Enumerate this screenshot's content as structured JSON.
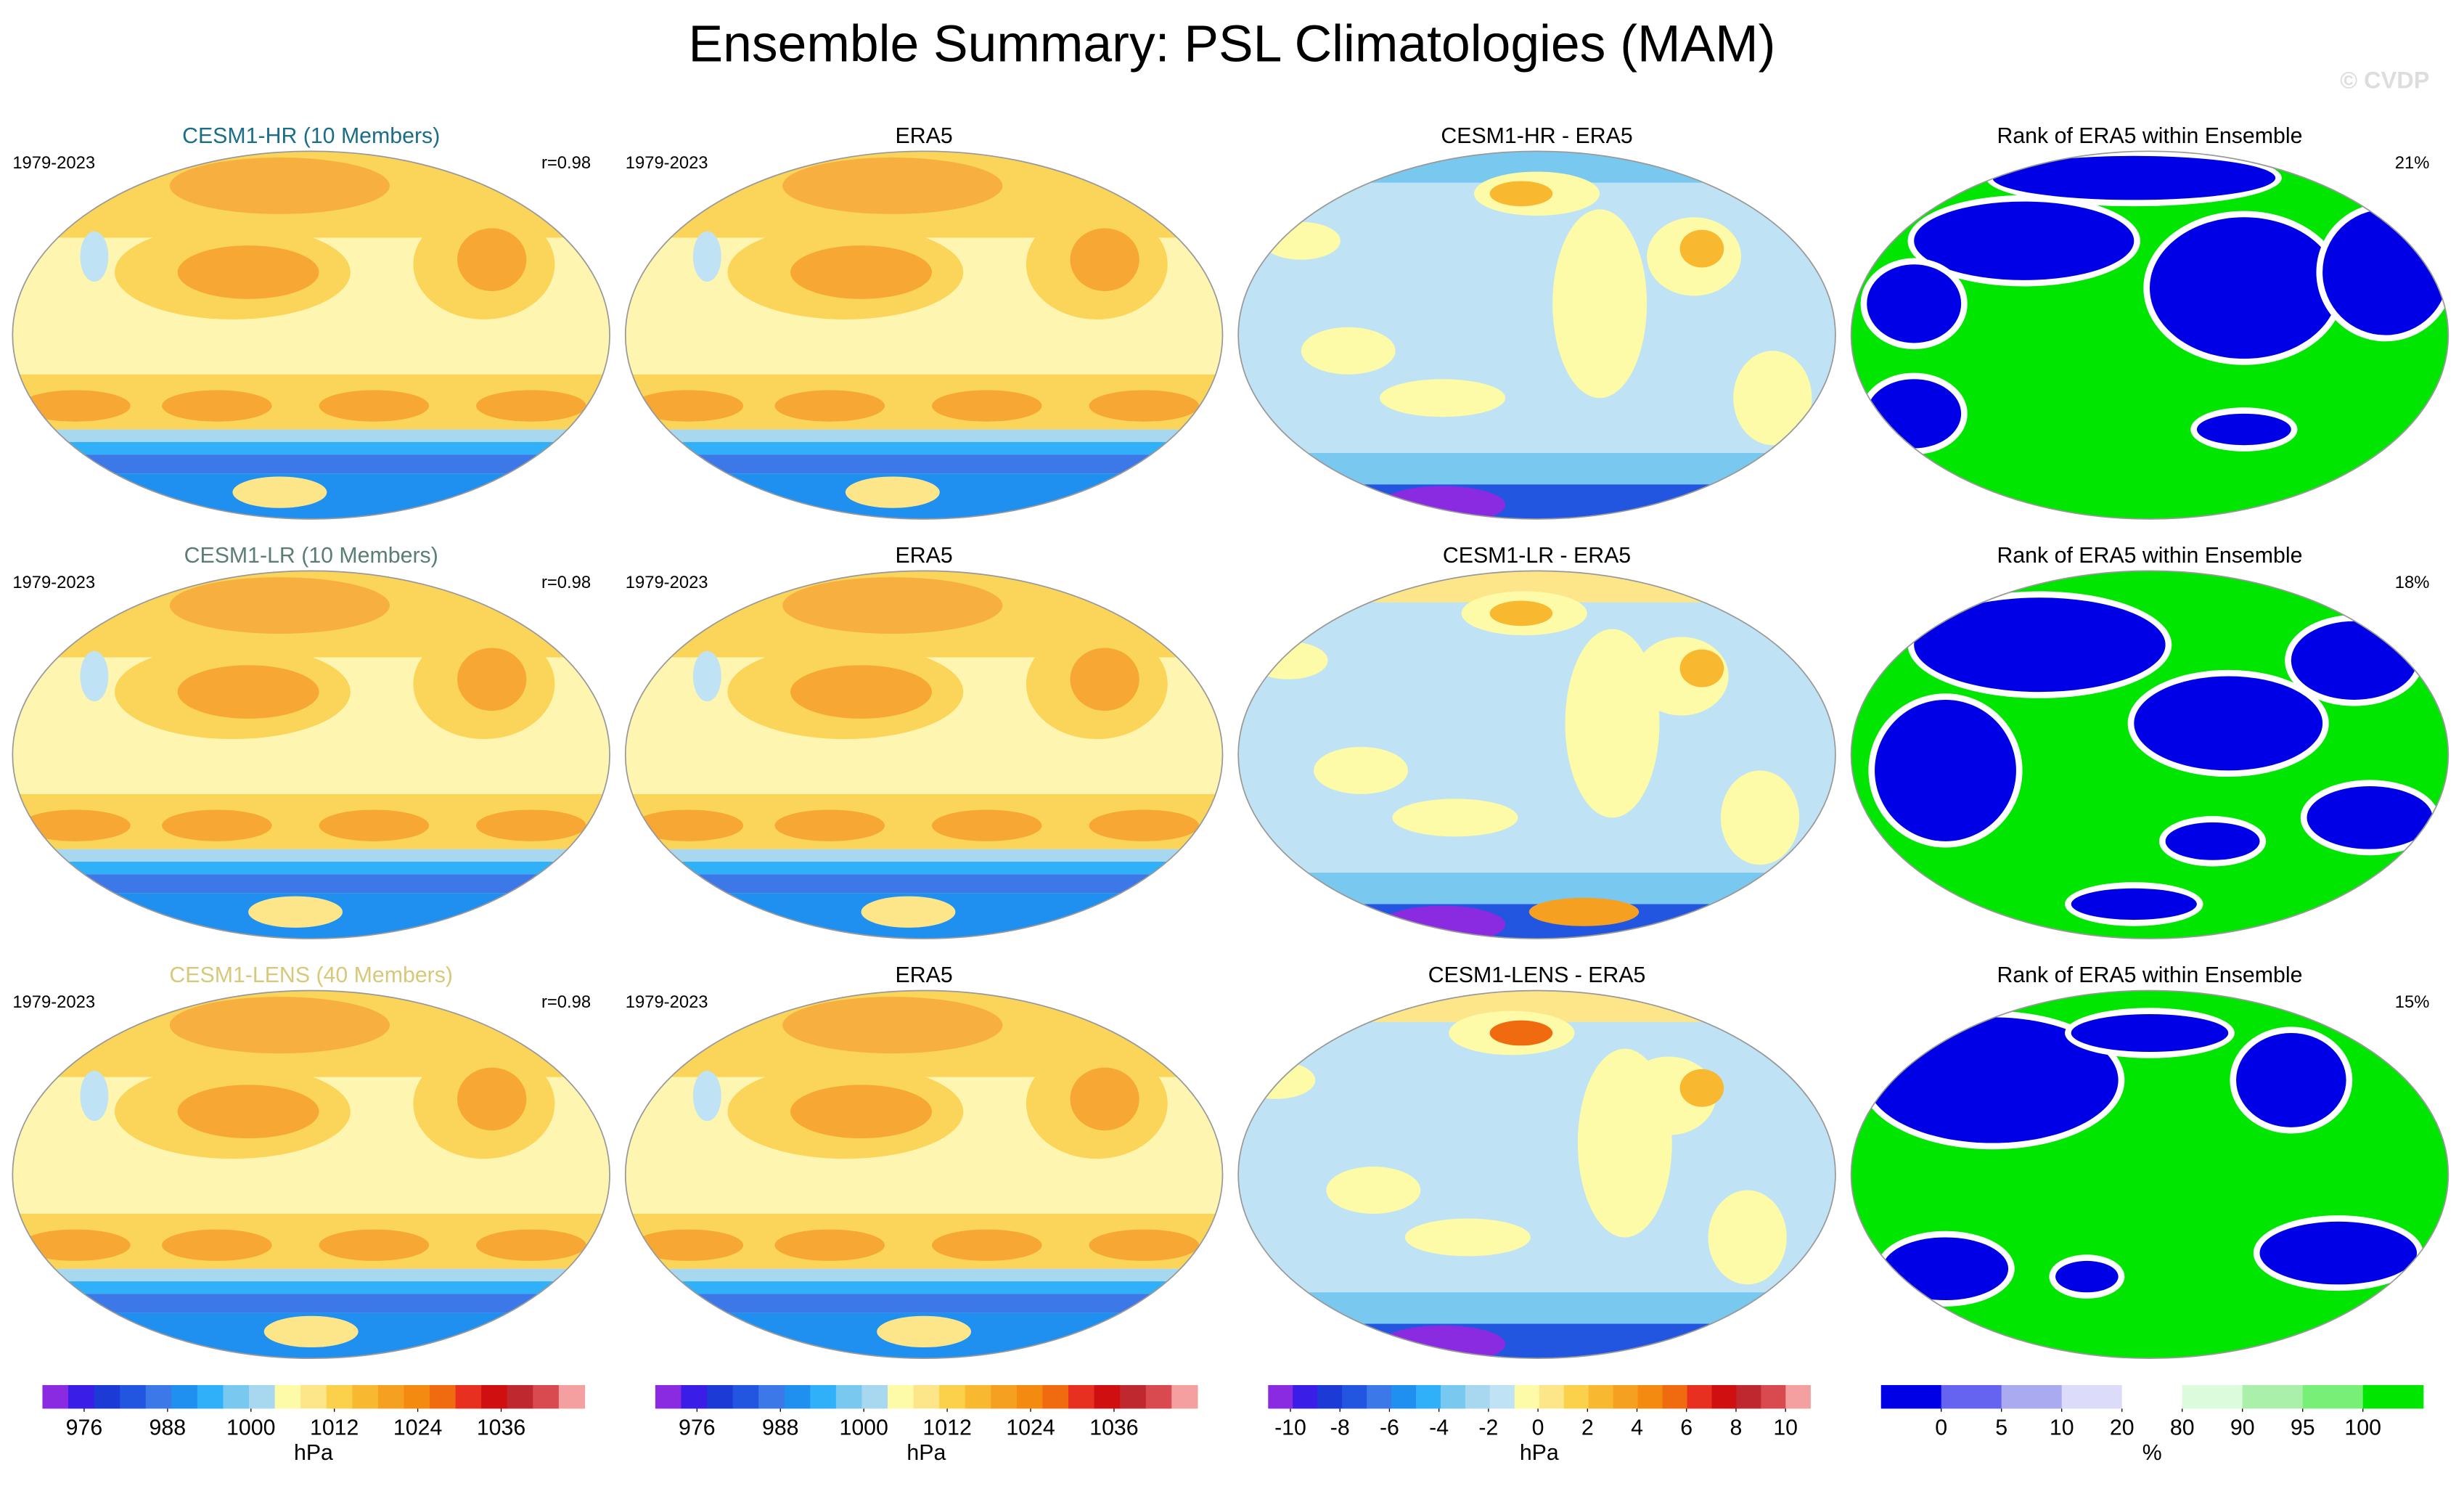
{
  "title": "Ensemble Summary: PSL Climatologies (MAM)",
  "watermark": "© CVDP",
  "rows": [
    {
      "panels": [
        {
          "title": "CESM1-HR (10 Members)",
          "title_color": "#1a6e8a",
          "left": "1979-2023",
          "right": "r=0.98",
          "map": "clim"
        },
        {
          "title": "ERA5",
          "left": "1979-2023",
          "map": "clim"
        },
        {
          "title": "CESM1-HR - ERA5",
          "map": "diff"
        },
        {
          "title": "Rank of ERA5 within Ensemble",
          "right": "21%",
          "map": "rank"
        }
      ]
    },
    {
      "panels": [
        {
          "title": "CESM1-LR (10 Members)",
          "title_color": "#5a7f70",
          "left": "1979-2023",
          "right": "r=0.98",
          "map": "clim"
        },
        {
          "title": "ERA5",
          "left": "1979-2023",
          "map": "clim"
        },
        {
          "title": "CESM1-LR - ERA5",
          "map": "diff"
        },
        {
          "title": "Rank of ERA5 within Ensemble",
          "right": "18%",
          "map": "rank"
        }
      ]
    },
    {
      "panels": [
        {
          "title": "CESM1-LENS (40 Members)",
          "title_color": "#d8c87a",
          "left": "1979-2023",
          "right": "r=0.98",
          "map": "clim"
        },
        {
          "title": "ERA5",
          "left": "1979-2023",
          "map": "clim"
        },
        {
          "title": "CESM1-LENS - ERA5",
          "map": "diff"
        },
        {
          "title": "Rank of ERA5 within Ensemble",
          "right": "15%",
          "map": "rank"
        }
      ]
    }
  ],
  "colorbars": [
    {
      "scale": "linear",
      "lim": [
        970,
        1048
      ],
      "ticks": [
        976,
        988,
        1000,
        1012,
        1024,
        1036
      ],
      "unit": "hPa",
      "colors": [
        "#8a2be2",
        "#3a1ee8",
        "#1c3ad6",
        "#2255e0",
        "#3c78e8",
        "#2090f0",
        "#30b0f8",
        "#78c8f0",
        "#a8d8f0",
        "#fdfaa8",
        "#fde68a",
        "#fbd14b",
        "#f8b830",
        "#f5a020",
        "#f58a10",
        "#f06a10",
        "#e83020",
        "#d01010",
        "#c02830",
        "#d84a50",
        "#f5a0a0"
      ]
    },
    {
      "scale": "linear",
      "lim": [
        970,
        1048
      ],
      "ticks": [
        976,
        988,
        1000,
        1012,
        1024,
        1036
      ],
      "unit": "hPa",
      "colors": [
        "#8a2be2",
        "#3a1ee8",
        "#1c3ad6",
        "#2255e0",
        "#3c78e8",
        "#2090f0",
        "#30b0f8",
        "#78c8f0",
        "#a8d8f0",
        "#fdfaa8",
        "#fde68a",
        "#fbd14b",
        "#f8b830",
        "#f5a020",
        "#f58a10",
        "#f06a10",
        "#e83020",
        "#d01010",
        "#c02830",
        "#d84a50",
        "#f5a0a0"
      ]
    },
    {
      "scale": "linear",
      "lim": [
        -10.9,
        11
      ],
      "ticks": [
        -10,
        -8,
        -6,
        -4,
        -2,
        0,
        2,
        4,
        6,
        8,
        10
      ],
      "unit": "hPa",
      "colors": [
        "#8a2be2",
        "#3a1ee8",
        "#1c3ad6",
        "#2255e0",
        "#3c78e8",
        "#2090f0",
        "#30b0f8",
        "#78c8f0",
        "#a8d8f0",
        "#bfe3f5",
        "#fdfaa8",
        "#fde68a",
        "#fbd14b",
        "#f8b830",
        "#f5a020",
        "#f58a10",
        "#f06a10",
        "#e83020",
        "#d01010",
        "#c02830",
        "#d84a50",
        "#f5a0a0"
      ]
    },
    {
      "scale": "boundaries",
      "ticks": [
        0,
        5,
        10,
        20,
        80,
        90,
        95,
        100
      ],
      "unit": "%",
      "colors": [
        "#0000e6",
        "#6464f0",
        "#aaaaf0",
        "#dcdcfa",
        "#ffffff",
        "#dcfadc",
        "#aaf0aa",
        "#78f078",
        "#00e600"
      ]
    }
  ]
}
